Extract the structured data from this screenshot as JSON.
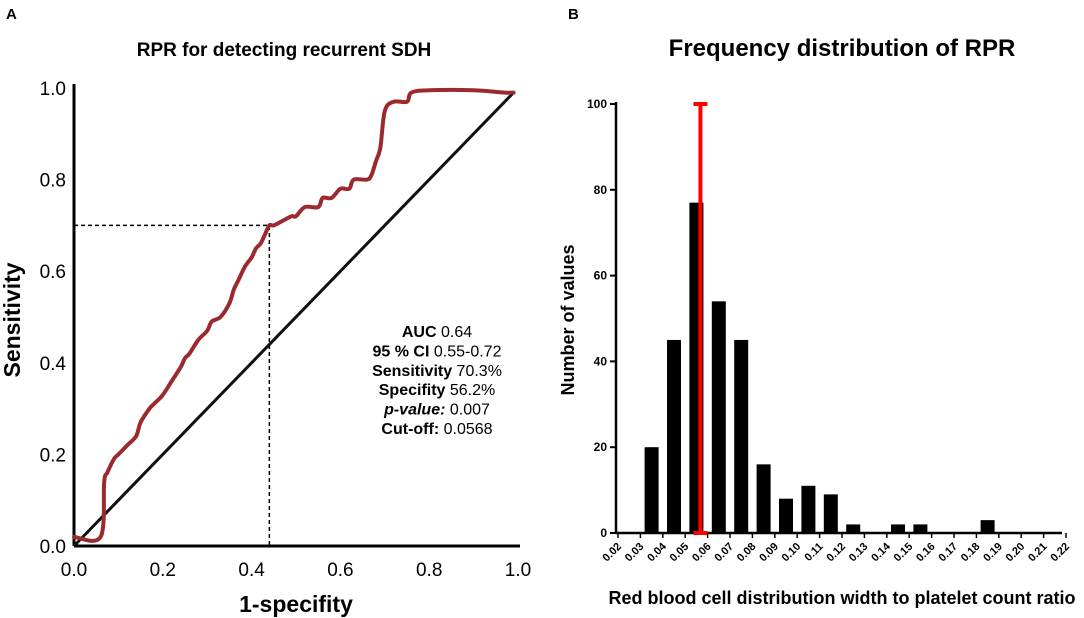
{
  "chart_data": [
    {
      "panel": "A",
      "type": "line",
      "title": "RPR for detecting recurrent SDH",
      "xlabel": "1-specifity",
      "ylabel": "Sensitivity",
      "xlim": [
        0,
        1
      ],
      "ylim": [
        0,
        1
      ],
      "xticks": [
        "0.0",
        "0.2",
        "0.4",
        "0.6",
        "0.8",
        "1.0"
      ],
      "yticks": [
        "0.0",
        "0.2",
        "0.4",
        "0.6",
        "0.8",
        "1.0"
      ],
      "series": [
        {
          "name": "ROC curve",
          "color": "#9b2a2e",
          "x": [
            0.0,
            0.06,
            0.068,
            0.075,
            0.09,
            0.1,
            0.12,
            0.14,
            0.15,
            0.17,
            0.18,
            0.2,
            0.22,
            0.24,
            0.25,
            0.26,
            0.28,
            0.3,
            0.31,
            0.33,
            0.35,
            0.36,
            0.37,
            0.385,
            0.4,
            0.41,
            0.42,
            0.43,
            0.44,
            0.45,
            0.47,
            0.49,
            0.5,
            0.52,
            0.55,
            0.56,
            0.58,
            0.6,
            0.62,
            0.63,
            0.66,
            0.67,
            0.68,
            0.69,
            0.7,
            0.72,
            0.75,
            0.76,
            0.8,
            0.9,
            0.97,
            0.99
          ],
          "y": [
            0.02,
            0.02,
            0.14,
            0.16,
            0.19,
            0.2,
            0.22,
            0.24,
            0.27,
            0.3,
            0.31,
            0.33,
            0.36,
            0.39,
            0.41,
            0.42,
            0.45,
            0.47,
            0.49,
            0.5,
            0.53,
            0.56,
            0.58,
            0.61,
            0.63,
            0.65,
            0.66,
            0.68,
            0.7,
            0.7,
            0.71,
            0.72,
            0.72,
            0.74,
            0.74,
            0.76,
            0.76,
            0.78,
            0.78,
            0.8,
            0.8,
            0.81,
            0.84,
            0.87,
            0.95,
            0.97,
            0.97,
            0.99,
            0.995,
            0.995,
            0.99,
            0.99
          ]
        },
        {
          "name": "Reference line",
          "color": "#111111",
          "x": [
            0.0,
            0.99
          ],
          "y": [
            0.0,
            0.99
          ]
        }
      ],
      "cutoff_point": {
        "x": 0.44,
        "y": 0.7
      },
      "annotations": [
        {
          "label": "AUC",
          "value": "0.64"
        },
        {
          "label": "95 % CI",
          "value": "0.55-0.72"
        },
        {
          "label": "Sensitivity",
          "value": "70.3%"
        },
        {
          "label": "Specifity",
          "value": "56.2%"
        },
        {
          "label": "p-value:",
          "value": "0.007"
        },
        {
          "label": "Cut-off:",
          "value": "0.0568"
        }
      ]
    },
    {
      "panel": "B",
      "type": "bar",
      "title": "Frequency distribution of RPR",
      "xlabel": "Red blood cell distribution width to platelet count ratio",
      "ylabel": "Number of values",
      "ylim": [
        0,
        100
      ],
      "yticks": [
        "0",
        "20",
        "40",
        "60",
        "80",
        "100"
      ],
      "categories": [
        "0.02",
        "0.03",
        "0.04",
        "0.05",
        "0.06",
        "0.07",
        "0.08",
        "0.09",
        "0.10",
        "0.11",
        "0.12",
        "0.13",
        "0.14",
        "0.15",
        "0.16",
        "0.17",
        "0.18",
        "0.19",
        "0.20",
        "0.21",
        "0.22"
      ],
      "values": [
        0,
        20,
        45,
        77,
        54,
        45,
        16,
        8,
        11,
        9,
        2,
        0,
        2,
        2,
        0,
        0,
        3,
        0,
        0,
        0,
        0
      ],
      "bar_color": "#000000",
      "cutoff_line": {
        "x": 0.0568,
        "top": 100,
        "color": "#ff0000"
      }
    }
  ],
  "panel_labels": {
    "a": "A",
    "b": "B"
  }
}
